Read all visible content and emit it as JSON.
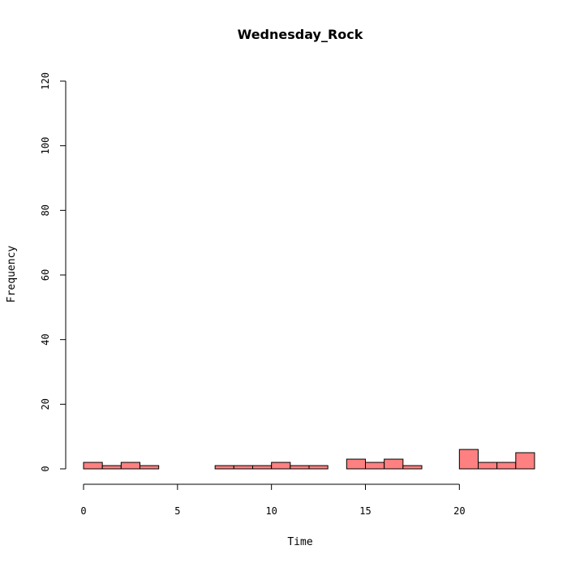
{
  "chart_data": {
    "type": "bar",
    "title": "Wednesday_Rock",
    "xlabel": "Time",
    "ylabel": "Frequency",
    "xlim": [
      0,
      24
    ],
    "ylim": [
      0,
      120
    ],
    "x_ticks": [
      0,
      5,
      10,
      15,
      20
    ],
    "y_ticks": [
      0,
      20,
      40,
      60,
      80,
      100,
      120
    ],
    "bin_width": 1,
    "bin_starts": [
      0,
      1,
      2,
      3,
      4,
      5,
      6,
      7,
      8,
      9,
      10,
      11,
      12,
      13,
      14,
      15,
      16,
      17,
      18,
      19,
      20,
      21,
      22,
      23
    ],
    "values": [
      2,
      1,
      2,
      1,
      0,
      0,
      0,
      1,
      1,
      1,
      2,
      1,
      1,
      0,
      3,
      2,
      3,
      1,
      0,
      0,
      6,
      2,
      2,
      5
    ],
    "bar_color": "#ff8080",
    "grid": false
  }
}
